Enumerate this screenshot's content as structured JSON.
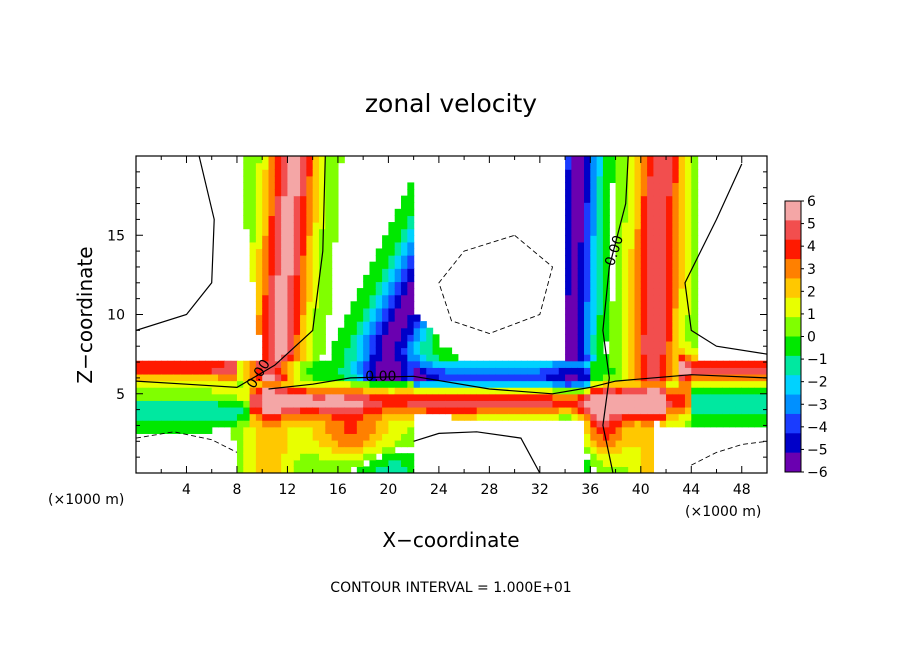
{
  "chart_data": {
    "type": "heatmap",
    "title": "zonal velocity",
    "xlabel": "X−coordinate",
    "ylabel": "Z−coordinate",
    "x_unit": "(×1000 m)",
    "y_unit": "(×1000 m)",
    "xlim": [
      0,
      50
    ],
    "ylim": [
      0,
      20
    ],
    "x_ticks": [
      4,
      8,
      12,
      16,
      20,
      24,
      28,
      32,
      36,
      40,
      44,
      48
    ],
    "y_ticks": [
      5,
      10,
      15
    ],
    "x_tick_labels": [
      "4",
      "8",
      "12",
      "16",
      "20",
      "24",
      "28",
      "32",
      "36",
      "40",
      "44",
      "48"
    ],
    "y_tick_labels": [
      "5",
      "10",
      "15"
    ],
    "colorbar": {
      "min": -6,
      "max": 6,
      "tick_values": [
        6,
        5,
        4,
        3,
        2,
        1,
        0,
        -1,
        -2,
        -3,
        -4,
        -5,
        -6
      ],
      "tick_labels": [
        "6",
        "5",
        "4",
        "3",
        "2",
        "1",
        "0",
        "−1",
        "−2",
        "−3",
        "−4",
        "−5",
        "−6"
      ],
      "colors": [
        "#f4a6a6",
        "#f24e4e",
        "#ff1a00",
        "#ff8000",
        "#ffc800",
        "#e8ff00",
        "#80ff00",
        "#00e800",
        "#00e8a0",
        "#00d2ff",
        "#0090ff",
        "#1a3cff",
        "#0000c8",
        "#6a00b0"
      ]
    },
    "contour_labels": [
      {
        "text": "0.00",
        "x": 9.8,
        "z": 6.2,
        "rotate": -58
      },
      {
        "text": "0.00",
        "x": 19.4,
        "z": 6.0,
        "rotate": 0
      },
      {
        "text": "0.00",
        "x": 38.0,
        "z": 14.0,
        "rotate": -72
      }
    ],
    "contour_interval_text": "CONTOUR INTERVAL =  1.000E+01"
  }
}
